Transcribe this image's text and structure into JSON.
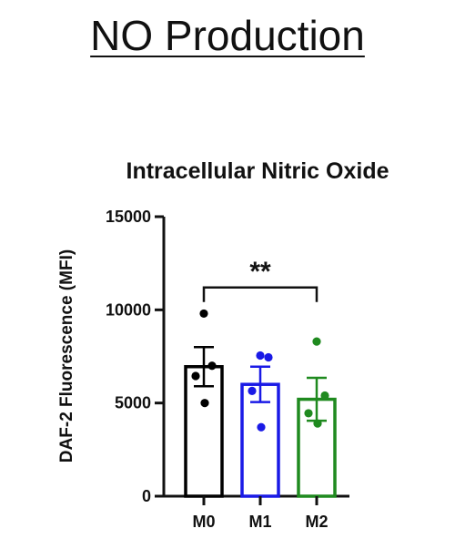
{
  "page_title": "NO Production",
  "chart_data": {
    "type": "bar",
    "title": "Intracellular Nitric Oxide",
    "ylabel": "DAF-2 Fluorescence (MFI)",
    "xlabel": "",
    "ylim": [
      0,
      15000
    ],
    "yticks": [
      0,
      5000,
      10000,
      15000
    ],
    "categories": [
      "M0",
      "M1",
      "M2"
    ],
    "series": [
      {
        "values": [
          6950,
          6000,
          5200
        ],
        "sem": [
          1050,
          950,
          1150
        ],
        "colors": [
          "#000000",
          "#1a1ae6",
          "#1f8a1f"
        ],
        "points": [
          [
            9800,
            7000,
            6450,
            5000
          ],
          [
            7550,
            7450,
            5650,
            3700
          ],
          [
            8300,
            5400,
            4450,
            3900
          ]
        ]
      }
    ],
    "annotations": [
      {
        "text": "**",
        "from": "M0",
        "to": "M2",
        "y": 11200
      }
    ],
    "grid": false,
    "legend": "none"
  }
}
